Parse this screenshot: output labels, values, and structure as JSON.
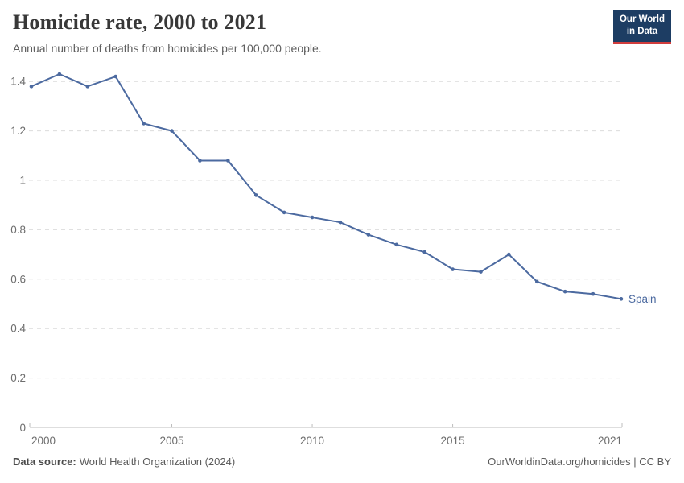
{
  "header": {
    "title": "Homicide rate, 2000 to 2021",
    "subtitle": "Annual number of deaths from homicides per 100,000 people.",
    "logo": {
      "line1": "Our World",
      "line2": "in Data"
    }
  },
  "chart_data": {
    "type": "line",
    "title": "Homicide rate, 2000 to 2021",
    "subtitle": "Annual number of deaths from homicides per 100,000 people.",
    "x": [
      2000,
      2001,
      2002,
      2003,
      2004,
      2005,
      2006,
      2007,
      2008,
      2009,
      2010,
      2011,
      2012,
      2013,
      2014,
      2015,
      2016,
      2017,
      2018,
      2019,
      2020,
      2021
    ],
    "series": [
      {
        "name": "Spain",
        "color": "#4c6aa0",
        "values": [
          1.38,
          1.43,
          1.38,
          1.42,
          1.23,
          1.2,
          1.08,
          1.08,
          0.94,
          0.87,
          0.85,
          0.83,
          0.78,
          0.74,
          0.71,
          0.64,
          0.63,
          0.7,
          0.59,
          0.55,
          0.54,
          0.52
        ]
      }
    ],
    "xlabel": "",
    "ylabel": "",
    "xlim": [
      2000,
      2021
    ],
    "ylim": [
      0,
      1.4
    ],
    "x_ticks": [
      2000,
      2005,
      2010,
      2015,
      2021
    ],
    "x_tick_labels": [
      "2000",
      "2005",
      "2010",
      "2015",
      "2021"
    ],
    "y_ticks": [
      0,
      0.2,
      0.4,
      0.6,
      0.8,
      1,
      1.2,
      1.4
    ],
    "y_tick_labels": [
      "0",
      "0.2",
      "0.4",
      "0.6",
      "0.8",
      "1",
      "1.2",
      "1.4"
    ],
    "grid": "horizontal-dashed",
    "legend": "end-of-line-label",
    "markers": true
  },
  "footer": {
    "source_label": "Data source:",
    "source_value": "World Health Organization (2024)",
    "attribution": "OurWorldinData.org/homicides | CC BY"
  },
  "colors": {
    "line": "#4c6aa0",
    "grid": "#dcdcdc",
    "axis": "#bdbdbd",
    "tick_text": "#6e6e6e",
    "logo_bg": "#1d3d63",
    "logo_accent": "#d13d3d",
    "title_text": "#383838"
  }
}
